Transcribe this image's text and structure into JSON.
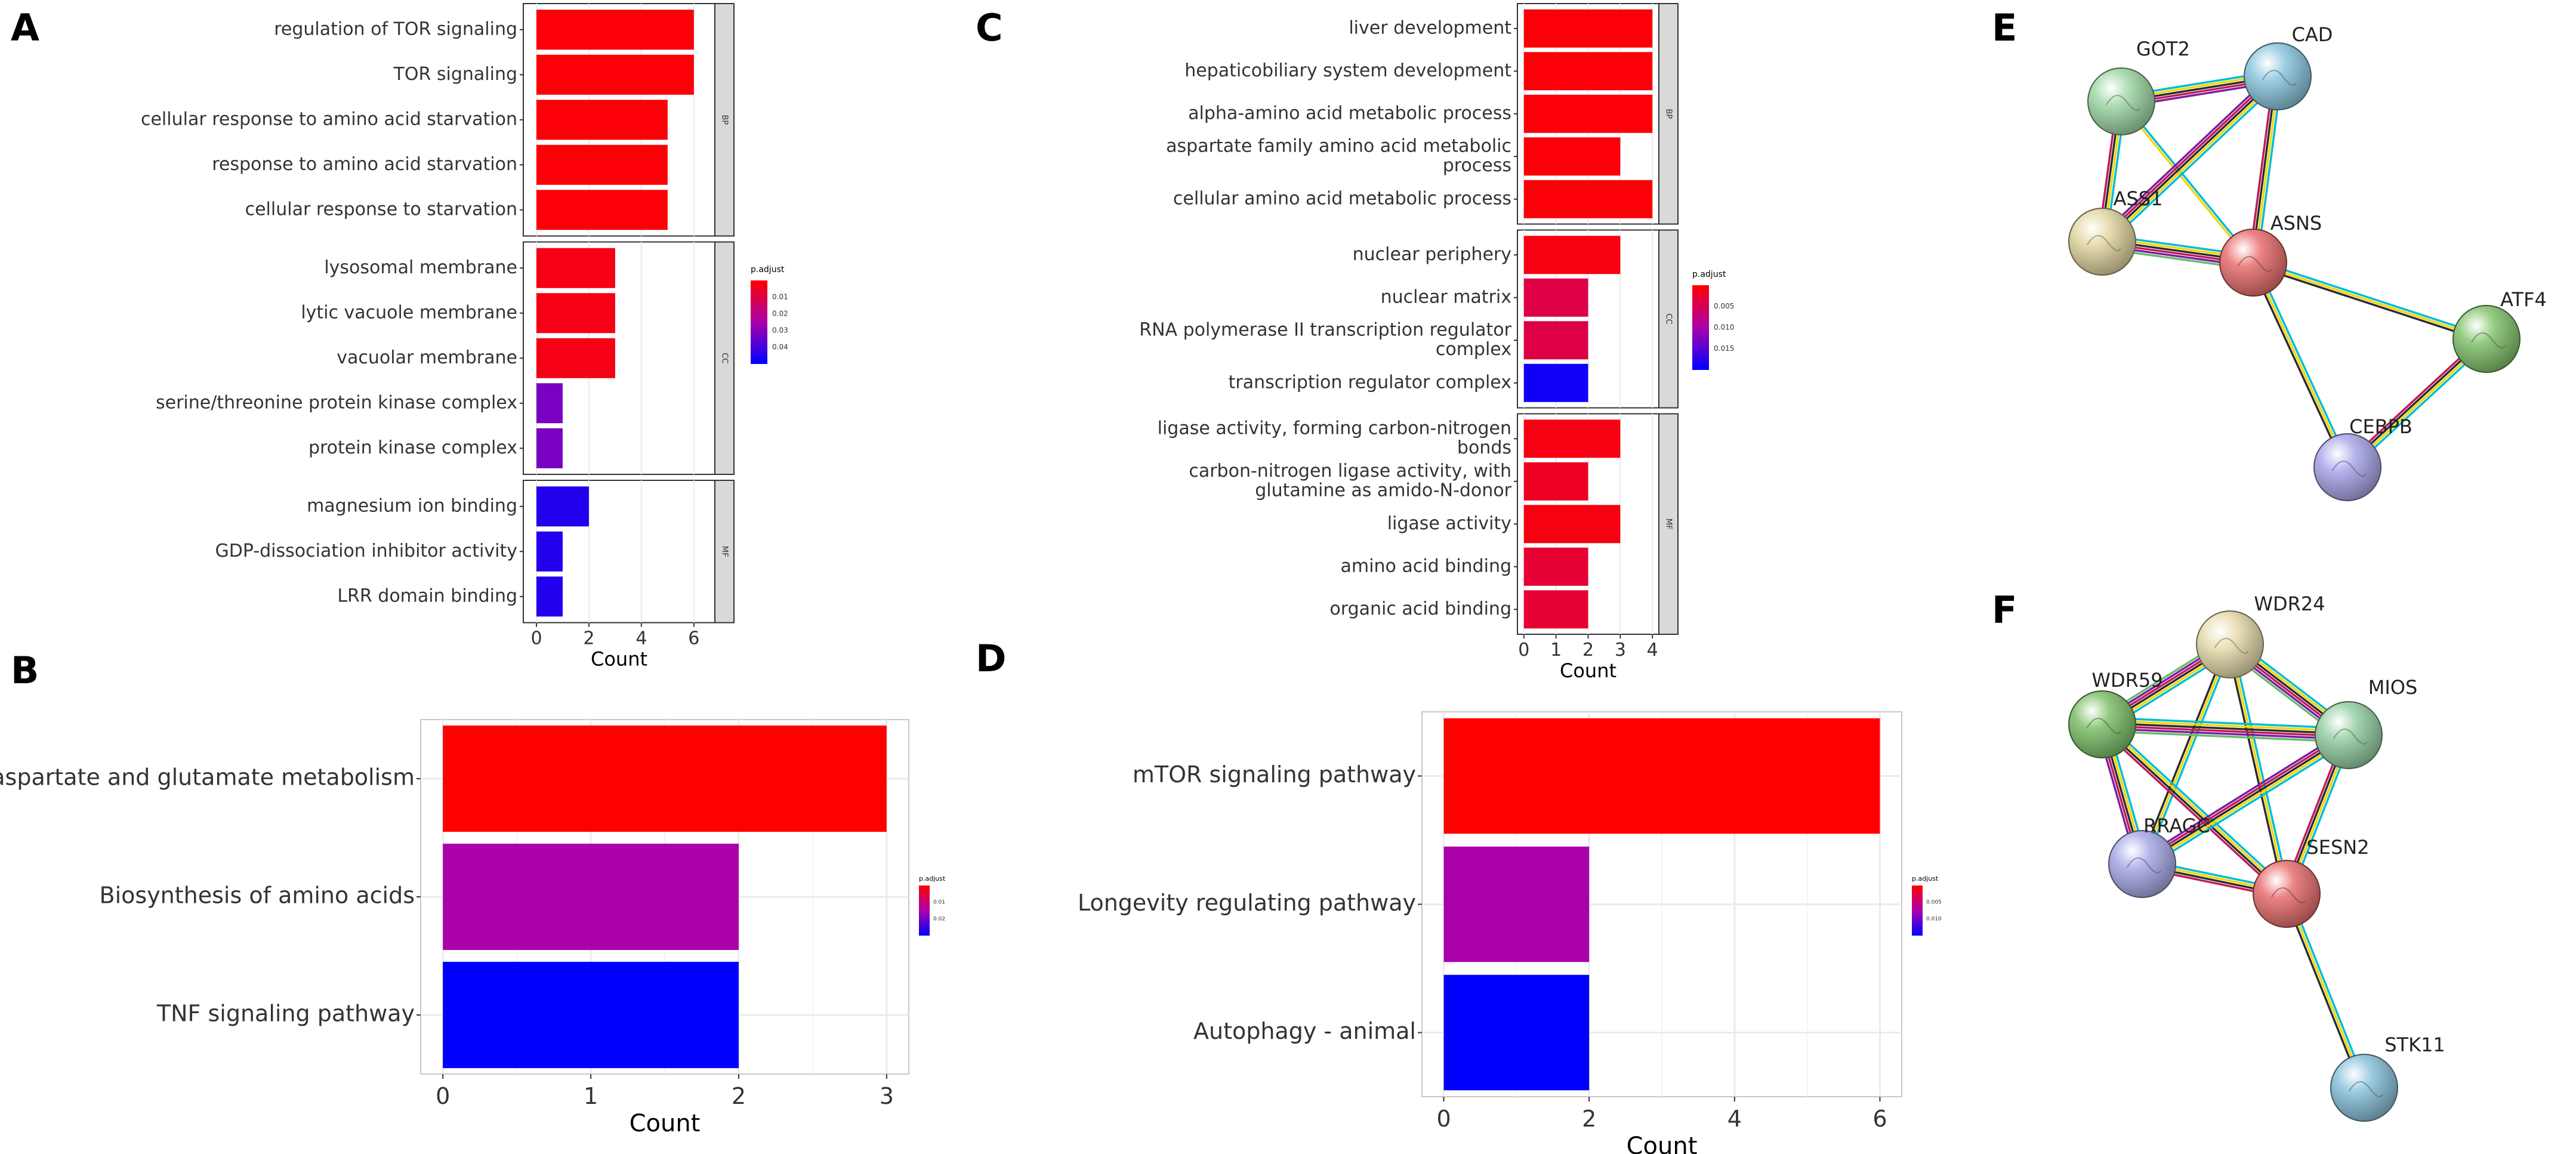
{
  "panel_labels": [
    "A",
    "B",
    "C",
    "D",
    "E",
    "F"
  ],
  "colors": {
    "high_sig": "#ff0000",
    "mid_sig": "#aa00aa",
    "low_sig": "#0000ff",
    "strip_fill": "#d9d9d9",
    "grid": "#ebebeb"
  },
  "chart_data": [
    {
      "id": "A",
      "type": "bar",
      "orientation": "horizontal",
      "xlabel": "Count",
      "xlim": [
        -0.5,
        6.8
      ],
      "xticks": [
        0,
        2,
        4,
        6
      ],
      "legend": {
        "title": "p.adjust",
        "ticks": [
          "0.01",
          "0.02",
          "0.03",
          "0.04"
        ],
        "placement": "right"
      },
      "facets": [
        {
          "label": "BP",
          "categories": [
            "regulation of TOR signaling",
            "TOR signaling",
            "cellular response to amino acid starvation",
            "response to amino acid starvation",
            "cellular response to starvation"
          ],
          "values": [
            6,
            6,
            5,
            5,
            5
          ],
          "p_adjust": [
            0.001,
            0.001,
            0.001,
            0.001,
            0.001
          ]
        },
        {
          "label": "CC",
          "categories": [
            "lysosomal membrane",
            "lytic vacuole membrane",
            "vacuolar membrane",
            "serine/threonine protein kinase complex",
            "protein kinase complex"
          ],
          "values": [
            3,
            3,
            3,
            1,
            1
          ],
          "p_adjust": [
            0.003,
            0.003,
            0.003,
            0.032,
            0.032
          ]
        },
        {
          "label": "MF",
          "categories": [
            "magnesium ion binding",
            "GDP-dissociation inhibitor activity",
            "LRR domain binding"
          ],
          "values": [
            2,
            1,
            1
          ],
          "p_adjust": [
            0.045,
            0.045,
            0.045
          ]
        }
      ]
    },
    {
      "id": "C",
      "type": "bar",
      "orientation": "horizontal",
      "xlabel": "Count",
      "xlim": [
        -0.2,
        4.2
      ],
      "xticks": [
        0,
        1,
        2,
        3,
        4
      ],
      "legend": {
        "title": "p.adjust",
        "ticks": [
          "0.005",
          "0.010",
          "0.015"
        ],
        "placement": "right"
      },
      "facets": [
        {
          "label": "BP",
          "categories": [
            "liver development",
            "hepaticobiliary system development",
            "alpha-amino acid metabolic process",
            "aspartate family amino acid metabolic process",
            "cellular amino acid metabolic process"
          ],
          "values": [
            4,
            4,
            4,
            3,
            4
          ],
          "p_adjust": [
            0.0005,
            0.0005,
            0.0005,
            0.0005,
            0.0005
          ]
        },
        {
          "label": "CC",
          "categories": [
            "nuclear periphery",
            "nuclear matrix",
            "RNA polymerase II transcription regulator complex",
            "transcription regulator complex"
          ],
          "values": [
            3,
            2,
            2,
            2
          ],
          "p_adjust": [
            0.001,
            0.004,
            0.004,
            0.019
          ]
        },
        {
          "label": "MF",
          "categories": [
            "ligase activity, forming carbon-nitrogen bonds",
            "carbon-nitrogen ligase activity, with glutamine as amido-N-donor",
            "ligase activity",
            "amino acid binding",
            "organic acid binding"
          ],
          "values": [
            3,
            2,
            3,
            2,
            2
          ],
          "p_adjust": [
            0.001,
            0.002,
            0.001,
            0.003,
            0.003
          ]
        }
      ]
    },
    {
      "id": "B",
      "type": "bar",
      "orientation": "horizontal",
      "xlabel": "Count",
      "xlim": [
        -0.15,
        3.15
      ],
      "xticks": [
        0,
        1,
        2,
        3
      ],
      "legend": {
        "title": "p.adjust",
        "ticks": [
          "0.01",
          "0.02"
        ],
        "placement": "right"
      },
      "categories": [
        "Alanine, aspartate and glutamate metabolism",
        "Biosynthesis of amino acids",
        "TNF signaling pathway"
      ],
      "values": [
        3,
        2,
        2
      ],
      "bar_colors": [
        "#ff0000",
        "#aa00aa",
        "#0000ff"
      ]
    },
    {
      "id": "D",
      "type": "bar",
      "orientation": "horizontal",
      "xlabel": "Count",
      "xlim": [
        -0.3,
        6.3
      ],
      "xticks": [
        0,
        2,
        4,
        6
      ],
      "legend": {
        "title": "p.adjust",
        "ticks": [
          "0.005",
          "0.010"
        ],
        "placement": "right"
      },
      "categories": [
        "mTOR signaling pathway",
        "Longevity regulating pathway",
        "Autophagy - animal"
      ],
      "values": [
        6,
        2,
        2
      ],
      "bar_colors": [
        "#ff0000",
        "#aa00aa",
        "#0000ff"
      ]
    }
  ],
  "networks": {
    "E": {
      "nodes": [
        {
          "name": "GOT2",
          "color": "#9fd8a6"
        },
        {
          "name": "CAD",
          "color": "#8cc6df"
        },
        {
          "name": "ASS1",
          "color": "#e2d6a0"
        },
        {
          "name": "ASNS",
          "color": "#e96e6e"
        },
        {
          "name": "ATF4",
          "color": "#84c36d"
        },
        {
          "name": "CEBPB",
          "color": "#a9a7ea"
        }
      ]
    },
    "F": {
      "nodes": [
        {
          "name": "WDR24",
          "color": "#e6dcac"
        },
        {
          "name": "WDR59",
          "color": "#7dc06a"
        },
        {
          "name": "MIOS",
          "color": "#95d0a3"
        },
        {
          "name": "RRAGC",
          "color": "#a8aae8"
        },
        {
          "name": "SESN2",
          "color": "#e96e6e"
        },
        {
          "name": "STK11",
          "color": "#8ac2dc"
        }
      ]
    }
  }
}
